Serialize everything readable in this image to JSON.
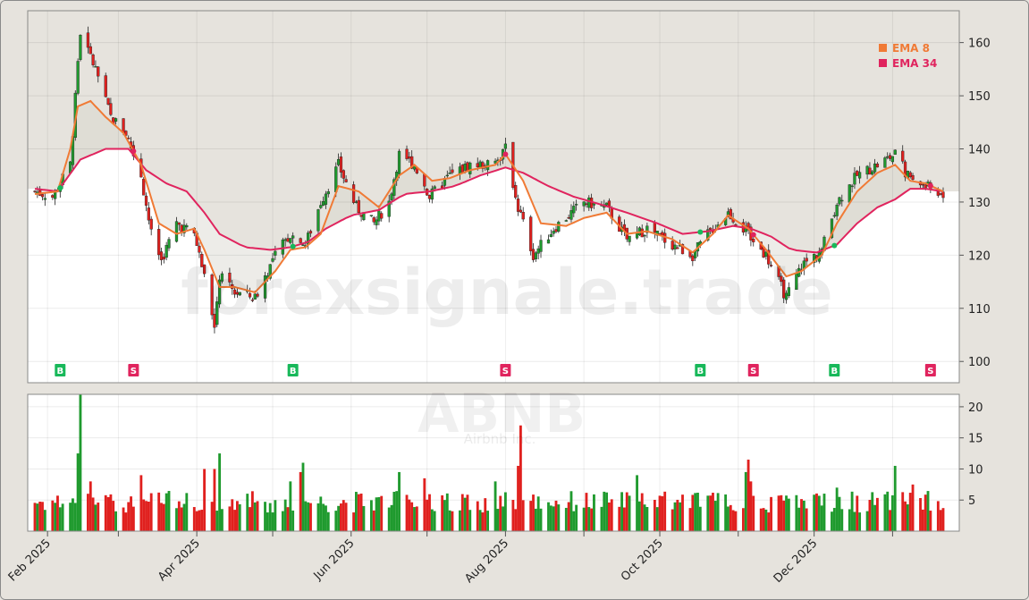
{
  "chart_data": {
    "type": "candlestick",
    "ticker": "ABNB",
    "company": "Airbnb Inc.",
    "watermark": "forexsignale.trade",
    "price_axis": {
      "ylim": [
        96,
        166
      ],
      "ticks": [
        "100",
        "110",
        "120",
        "130",
        "140",
        "150",
        "160"
      ]
    },
    "volume_axis": {
      "ylim": [
        0,
        22
      ],
      "ticks": [
        "5",
        "10",
        "15",
        "20"
      ]
    },
    "x_axis": {
      "start": "2025-01-27",
      "end": "2026-01-21",
      "tick_labels": [
        {
          "date": "2025-02-01",
          "label": "Feb 2025"
        },
        {
          "date": "2025-04-01",
          "label": "Apr 2025"
        },
        {
          "date": "2025-06-01",
          "label": "Jun 2025"
        },
        {
          "date": "2025-08-01",
          "label": "Aug 2025"
        },
        {
          "date": "2025-10-01",
          "label": "Oct 2025"
        },
        {
          "date": "2025-12-01",
          "label": "Dec 2025"
        }
      ],
      "minor_ticks": [
        "2025-03-01",
        "2025-05-01",
        "2025-07-01",
        "2025-09-01",
        "2025-11-01",
        "2026-01-01"
      ]
    },
    "legend": [
      {
        "name": "EMA 8",
        "color": "#f07a35"
      },
      {
        "name": "EMA 34",
        "color": "#e0245e"
      }
    ],
    "price_anchors": [
      [
        "2025-01-27",
        132
      ],
      [
        "2025-02-03",
        131
      ],
      [
        "2025-02-10",
        137
      ],
      [
        "2025-02-14",
        162
      ],
      [
        "2025-02-20",
        155
      ],
      [
        "2025-02-26",
        146
      ],
      [
        "2025-03-04",
        143
      ],
      [
        "2025-03-10",
        135
      ],
      [
        "2025-03-14",
        124
      ],
      [
        "2025-03-18",
        119
      ],
      [
        "2025-03-24",
        126
      ],
      [
        "2025-03-31",
        124
      ],
      [
        "2025-04-04",
        116
      ],
      [
        "2025-04-08",
        107
      ],
      [
        "2025-04-10",
        116
      ],
      [
        "2025-04-16",
        113
      ],
      [
        "2025-04-24",
        112
      ],
      [
        "2025-05-02",
        120
      ],
      [
        "2025-05-08",
        124
      ],
      [
        "2025-05-14",
        122
      ],
      [
        "2025-05-20",
        130
      ],
      [
        "2025-05-27",
        137
      ],
      [
        "2025-06-03",
        129
      ],
      [
        "2025-06-10",
        126
      ],
      [
        "2025-06-16",
        130
      ],
      [
        "2025-06-20",
        139
      ],
      [
        "2025-06-26",
        137
      ],
      [
        "2025-07-02",
        131
      ],
      [
        "2025-07-10",
        135
      ],
      [
        "2025-07-18",
        137
      ],
      [
        "2025-07-28",
        137
      ],
      [
        "2025-08-01",
        140
      ],
      [
        "2025-08-06",
        129
      ],
      [
        "2025-08-12",
        120
      ],
      [
        "2025-08-20",
        125
      ],
      [
        "2025-09-01",
        130
      ],
      [
        "2025-09-10",
        129
      ],
      [
        "2025-09-18",
        123
      ],
      [
        "2025-09-26",
        125
      ],
      [
        "2025-10-06",
        122
      ],
      [
        "2025-10-14",
        120
      ],
      [
        "2025-10-20",
        124
      ],
      [
        "2025-10-28",
        128
      ],
      [
        "2025-11-05",
        124
      ],
      [
        "2025-11-12",
        120
      ],
      [
        "2025-11-20",
        112
      ],
      [
        "2025-11-26",
        118
      ],
      [
        "2025-12-04",
        121
      ],
      [
        "2025-12-10",
        130
      ],
      [
        "2025-12-18",
        135
      ],
      [
        "2025-12-26",
        137
      ],
      [
        "2026-01-02",
        139
      ],
      [
        "2026-01-07",
        135
      ],
      [
        "2026-01-14",
        133
      ],
      [
        "2026-01-21",
        131
      ]
    ],
    "ema8_anchors": [
      [
        "2025-01-27",
        131.5
      ],
      [
        "2025-02-05",
        132
      ],
      [
        "2025-02-10",
        140
      ],
      [
        "2025-02-13",
        148
      ],
      [
        "2025-02-18",
        149
      ],
      [
        "2025-02-24",
        146
      ],
      [
        "2025-03-03",
        143
      ],
      [
        "2025-03-10",
        137
      ],
      [
        "2025-03-17",
        126
      ],
      [
        "2025-03-24",
        124
      ],
      [
        "2025-03-31",
        125
      ],
      [
        "2025-04-04",
        121
      ],
      [
        "2025-04-10",
        114
      ],
      [
        "2025-04-16",
        114
      ],
      [
        "2025-04-24",
        113
      ],
      [
        "2025-05-02",
        117
      ],
      [
        "2025-05-08",
        121
      ],
      [
        "2025-05-14",
        121.5
      ],
      [
        "2025-05-20",
        124
      ],
      [
        "2025-05-27",
        133
      ],
      [
        "2025-06-04",
        132
      ],
      [
        "2025-06-12",
        129
      ],
      [
        "2025-06-20",
        135
      ],
      [
        "2025-06-26",
        137
      ],
      [
        "2025-07-03",
        134
      ],
      [
        "2025-07-10",
        134.5
      ],
      [
        "2025-07-18",
        136
      ],
      [
        "2025-07-28",
        137
      ],
      [
        "2025-08-01",
        139
      ],
      [
        "2025-08-08",
        134
      ],
      [
        "2025-08-15",
        126
      ],
      [
        "2025-08-25",
        125.5
      ],
      [
        "2025-09-01",
        127
      ],
      [
        "2025-09-10",
        128
      ],
      [
        "2025-09-18",
        124
      ],
      [
        "2025-09-26",
        124.5
      ],
      [
        "2025-10-06",
        123
      ],
      [
        "2025-10-14",
        120.5
      ],
      [
        "2025-10-22",
        124
      ],
      [
        "2025-10-28",
        127.5
      ],
      [
        "2025-11-05",
        125
      ],
      [
        "2025-11-12",
        121
      ],
      [
        "2025-11-20",
        116
      ],
      [
        "2025-11-26",
        117
      ],
      [
        "2025-12-04",
        120
      ],
      [
        "2025-12-10",
        126
      ],
      [
        "2025-12-18",
        132
      ],
      [
        "2025-12-26",
        135.5
      ],
      [
        "2026-01-02",
        137
      ],
      [
        "2026-01-08",
        134
      ],
      [
        "2026-01-14",
        133.5
      ],
      [
        "2026-01-21",
        132
      ]
    ],
    "ema34_anchors": [
      [
        "2025-01-27",
        132.5
      ],
      [
        "2025-02-05",
        132
      ],
      [
        "2025-02-14",
        138
      ],
      [
        "2025-02-24",
        140
      ],
      [
        "2025-03-05",
        140
      ],
      [
        "2025-03-12",
        136
      ],
      [
        "2025-03-20",
        133.5
      ],
      [
        "2025-03-28",
        132
      ],
      [
        "2025-04-04",
        128
      ],
      [
        "2025-04-10",
        124
      ],
      [
        "2025-04-20",
        121.5
      ],
      [
        "2025-04-30",
        121
      ],
      [
        "2025-05-08",
        121.5
      ],
      [
        "2025-05-15",
        122.5
      ],
      [
        "2025-05-22",
        125
      ],
      [
        "2025-06-01",
        127.5
      ],
      [
        "2025-06-12",
        128.5
      ],
      [
        "2025-06-22",
        131.5
      ],
      [
        "2025-07-02",
        132
      ],
      [
        "2025-07-12",
        133
      ],
      [
        "2025-07-22",
        135
      ],
      [
        "2025-08-01",
        136.5
      ],
      [
        "2025-08-08",
        135.5
      ],
      [
        "2025-08-18",
        133
      ],
      [
        "2025-08-28",
        131
      ],
      [
        "2025-09-08",
        129.5
      ],
      [
        "2025-09-18",
        128
      ],
      [
        "2025-09-30",
        126
      ],
      [
        "2025-10-10",
        124
      ],
      [
        "2025-10-20",
        124.5
      ],
      [
        "2025-10-30",
        125.5
      ],
      [
        "2025-11-06",
        125
      ],
      [
        "2025-11-14",
        123.5
      ],
      [
        "2025-11-22",
        121
      ],
      [
        "2025-12-02",
        120.5
      ],
      [
        "2025-12-10",
        122
      ],
      [
        "2025-12-18",
        126
      ],
      [
        "2025-12-26",
        129
      ],
      [
        "2026-01-02",
        130.5
      ],
      [
        "2026-01-08",
        132.5
      ],
      [
        "2026-01-14",
        132.5
      ],
      [
        "2026-01-21",
        132
      ]
    ],
    "volume_spikes": [
      [
        "2025-02-13",
        12.5
      ],
      [
        "2025-02-14",
        22
      ],
      [
        "2025-02-18",
        8
      ],
      [
        "2025-03-10",
        9
      ],
      [
        "2025-04-04",
        10
      ],
      [
        "2025-04-08",
        10
      ],
      [
        "2025-04-10",
        12.5
      ],
      [
        "2025-05-08",
        8
      ],
      [
        "2025-05-12",
        9.5
      ],
      [
        "2025-05-13",
        11
      ],
      [
        "2025-06-20",
        9.5
      ],
      [
        "2025-06-30",
        8.5
      ],
      [
        "2025-07-28",
        8
      ],
      [
        "2025-08-06",
        10.5
      ],
      [
        "2025-08-07",
        17
      ],
      [
        "2025-09-22",
        9
      ],
      [
        "2025-11-04",
        9.5
      ],
      [
        "2025-11-05",
        11.5
      ],
      [
        "2025-11-06",
        8
      ],
      [
        "2025-12-10",
        7
      ],
      [
        "2026-01-02",
        10.5
      ],
      [
        "2026-01-09",
        7.5
      ]
    ],
    "signals": [
      {
        "date": "2025-02-06",
        "label": "B",
        "type": "buy"
      },
      {
        "date": "2025-03-07",
        "label": "S",
        "type": "sell"
      },
      {
        "date": "2025-05-09",
        "label": "B",
        "type": "buy"
      },
      {
        "date": "2025-08-01",
        "label": "S",
        "type": "sell"
      },
      {
        "date": "2025-10-17",
        "label": "B",
        "type": "buy"
      },
      {
        "date": "2025-11-07",
        "label": "S",
        "type": "sell"
      },
      {
        "date": "2025-12-09",
        "label": "B",
        "type": "buy"
      },
      {
        "date": "2026-01-16",
        "label": "S",
        "type": "sell"
      }
    ],
    "colors": {
      "up": "#1f9a2e",
      "down": "#e0201e",
      "buy": "#18b85a",
      "sell": "#e0245e",
      "ema8": "#f07a35",
      "ema34": "#e0245e",
      "panel_bg": "#e6e3dd",
      "plot_bg": "#ffffff"
    }
  }
}
